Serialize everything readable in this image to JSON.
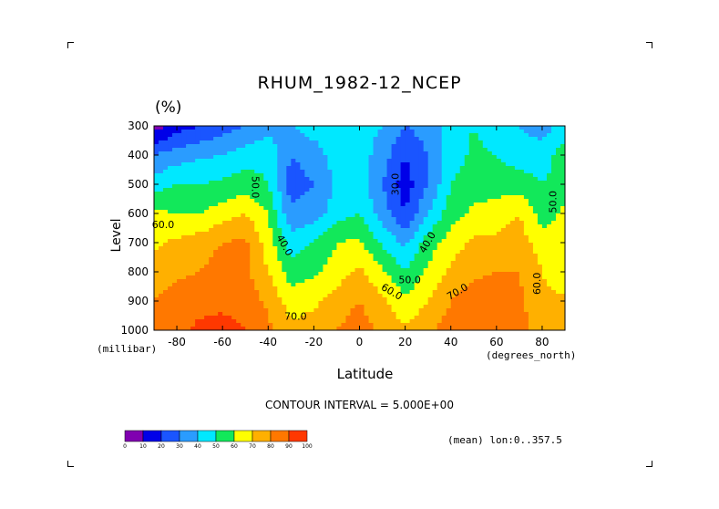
{
  "chart_data": {
    "type": "heatmap",
    "title": "RHUM_1982-12_NCEP",
    "units": "(%)",
    "ylabel": "Level",
    "ylabel_unit": "(millibar)",
    "xlabel": "Latitude",
    "xlabel_unit": "(degrees_north)",
    "xlim": [
      -90,
      90
    ],
    "ylim": [
      1000,
      300
    ],
    "x_ticks": [
      -80,
      -60,
      -40,
      -20,
      0,
      20,
      40,
      60,
      80
    ],
    "y_ticks": [
      300,
      400,
      500,
      600,
      700,
      800,
      900,
      1000
    ],
    "contour_interval_text": "CONTOUR INTERVAL = 5.000E+00",
    "mean_text": "(mean) lon:0..357.5",
    "lat": [
      -90,
      -80,
      -70,
      -60,
      -50,
      -40,
      -30,
      -20,
      -10,
      0,
      10,
      20,
      30,
      40,
      50,
      60,
      70,
      80,
      90
    ],
    "levels": [
      300,
      400,
      500,
      600,
      700,
      800,
      900,
      1000
    ],
    "values": [
      [
        5,
        15,
        20,
        25,
        30,
        35,
        40,
        45,
        45,
        45,
        40,
        30,
        35,
        45,
        50,
        45,
        40,
        35,
        45
      ],
      [
        30,
        35,
        38,
        40,
        45,
        48,
        30,
        35,
        45,
        45,
        35,
        20,
        30,
        45,
        52,
        50,
        45,
        45,
        55
      ],
      [
        45,
        50,
        50,
        52,
        55,
        50,
        25,
        30,
        42,
        45,
        30,
        15,
        30,
        50,
        55,
        55,
        55,
        50,
        55
      ],
      [
        62,
        60,
        60,
        65,
        70,
        60,
        32,
        35,
        45,
        50,
        35,
        20,
        40,
        55,
        62,
        65,
        70,
        55,
        62
      ],
      [
        68,
        72,
        75,
        80,
        82,
        65,
        45,
        50,
        60,
        62,
        48,
        38,
        55,
        65,
        72,
        72,
        75,
        65,
        65
      ],
      [
        75,
        78,
        80,
        85,
        83,
        70,
        55,
        58,
        65,
        72,
        62,
        50,
        62,
        72,
        78,
        80,
        80,
        70,
        62
      ],
      [
        80,
        85,
        87,
        88,
        86,
        78,
        65,
        68,
        75,
        80,
        72,
        62,
        70,
        80,
        85,
        85,
        82,
        72,
        72
      ],
      [
        85,
        88,
        92,
        93,
        90,
        82,
        72,
        75,
        80,
        85,
        78,
        72,
        78,
        85,
        88,
        88,
        85,
        75,
        80
      ]
    ],
    "contour_labels": [
      {
        "text": "60.0",
        "lat": -86,
        "level": 640
      },
      {
        "text": "50.0",
        "lat": -46,
        "level": 510,
        "rotate": 90
      },
      {
        "text": "40.0",
        "lat": -33,
        "level": 710,
        "rotate": 60
      },
      {
        "text": "70.0",
        "lat": -28,
        "level": 955
      },
      {
        "text": "30.0",
        "lat": 16,
        "level": 500,
        "rotate": -90
      },
      {
        "text": "40.0",
        "lat": 30,
        "level": 700,
        "rotate": -60
      },
      {
        "text": "50.0",
        "lat": 22,
        "level": 830
      },
      {
        "text": "60.0",
        "lat": 14,
        "level": 870,
        "rotate": 30
      },
      {
        "text": "70.0",
        "lat": 43,
        "level": 870,
        "rotate": -30
      },
      {
        "text": "60.0",
        "lat": 78,
        "level": 840,
        "rotate": -90
      },
      {
        "text": "50.0",
        "lat": 85,
        "level": 560,
        "rotate": -90
      }
    ],
    "colorbar": {
      "bins": [
        0,
        10,
        20,
        30,
        40,
        50,
        60,
        70,
        80,
        90,
        100
      ],
      "labels": [
        "0",
        "10",
        "20",
        "30",
        "40",
        "50",
        "60",
        "70",
        "80",
        "90",
        "100"
      ],
      "colors": [
        "#8000b0",
        "#0000e8",
        "#1a55ff",
        "#2a9cff",
        "#00e8ff",
        "#12e85a",
        "#ffff00",
        "#ffb000",
        "#ff7800",
        "#ff3800"
      ]
    }
  }
}
